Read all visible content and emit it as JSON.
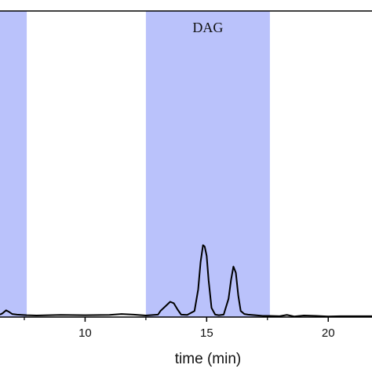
{
  "chart_data": {
    "type": "line",
    "xlabel": "time (min)",
    "ylabel": "",
    "xlim": [
      6.5,
      21.8
    ],
    "ylim": [
      0,
      1.0
    ],
    "x_ticks": [
      10,
      15,
      20
    ],
    "x_minor_ticks": [
      7.5,
      12.5,
      17.5
    ],
    "shaded_regions": [
      {
        "label": "",
        "x_start": 6.5,
        "x_end": 7.6,
        "color": "#bac2fb"
      },
      {
        "label": "DAG",
        "x_start": 12.5,
        "x_end": 17.6,
        "color": "#bac2fb"
      }
    ],
    "series": [
      {
        "color": "#000000",
        "x": [
          6.5,
          6.6,
          6.75,
          6.85,
          7.0,
          7.2,
          7.6,
          8.0,
          9.0,
          10.0,
          11.0,
          11.5,
          12.0,
          12.5,
          13.0,
          13.1,
          13.3,
          13.5,
          13.65,
          13.8,
          13.95,
          14.2,
          14.5,
          14.65,
          14.75,
          14.85,
          14.92,
          15.0,
          15.08,
          15.2,
          15.35,
          15.5,
          15.7,
          15.9,
          16.0,
          16.1,
          16.2,
          16.3,
          16.4,
          16.55,
          16.7,
          17.0,
          17.3,
          17.6,
          18.0,
          18.3,
          18.6,
          19.0,
          19.5,
          20.0,
          20.5,
          21.0,
          21.8
        ],
        "y": [
          0.008,
          0.012,
          0.022,
          0.018,
          0.01,
          0.008,
          0.006,
          0.005,
          0.007,
          0.006,
          0.007,
          0.01,
          0.008,
          0.005,
          0.008,
          0.02,
          0.035,
          0.05,
          0.045,
          0.025,
          0.008,
          0.007,
          0.02,
          0.09,
          0.18,
          0.235,
          0.23,
          0.2,
          0.12,
          0.03,
          0.008,
          0.006,
          0.008,
          0.06,
          0.12,
          0.165,
          0.145,
          0.07,
          0.02,
          0.01,
          0.008,
          0.006,
          0.004,
          0.004,
          0.003,
          0.007,
          0.002,
          0.005,
          0.004,
          0.002,
          0.003,
          0.003,
          0.003
        ]
      }
    ]
  }
}
